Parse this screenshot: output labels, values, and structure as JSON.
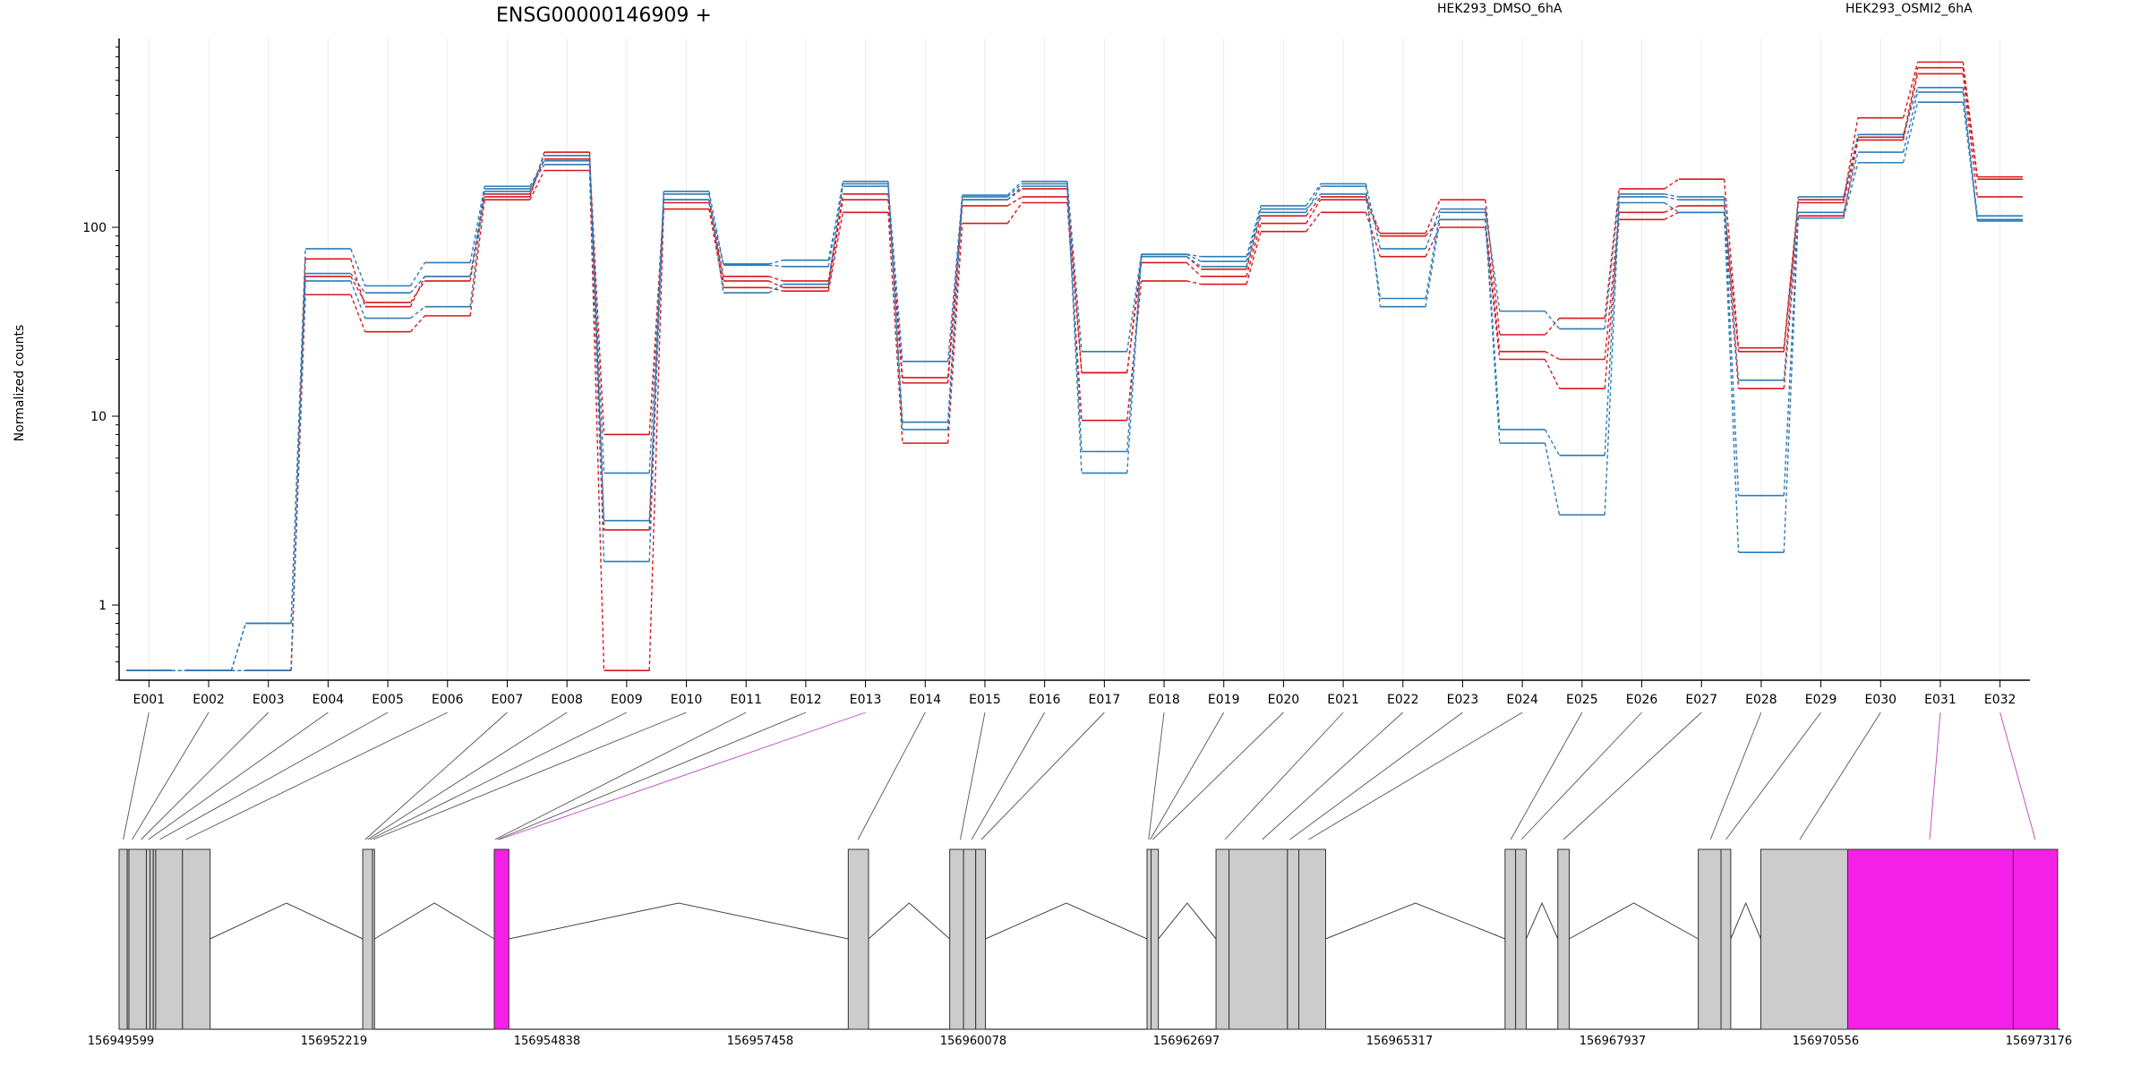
{
  "chart_data": {
    "type": "line",
    "title": "ENSG00000146909 +",
    "ylabel": "Normalized counts",
    "yscale": "log",
    "ylim": [
      0.4,
      1000
    ],
    "yticks": [
      1,
      10,
      100
    ],
    "ytick_labels": [
      "1",
      "10",
      "100"
    ],
    "grid": true,
    "legend_position": "top",
    "categories": [
      "E001",
      "E002",
      "E003",
      "E004",
      "E005",
      "E006",
      "E007",
      "E008",
      "E009",
      "E010",
      "E011",
      "E012",
      "E013",
      "E014",
      "E015",
      "E016",
      "E017",
      "E018",
      "E019",
      "E020",
      "E021",
      "E022",
      "E023",
      "E024",
      "E025",
      "E026",
      "E027",
      "E028",
      "E029",
      "E030",
      "E031",
      "E032"
    ],
    "series": [
      {
        "name": "HEK293_DMSO_6hA",
        "color": "#d7191c",
        "values": [
          0.45,
          0.45,
          0.45,
          44,
          28,
          34,
          140,
          200,
          0.45,
          125,
          48,
          46,
          120,
          7.2,
          105,
          135,
          9.5,
          52,
          50,
          95,
          120,
          70,
          100,
          20,
          14,
          110,
          120,
          14,
          115,
          290,
          650,
          145
        ]
      },
      {
        "color": "#d7191c",
        "values": [
          0.45,
          0.45,
          0.45,
          55,
          40,
          52,
          150,
          230,
          8,
          135,
          52,
          48,
          140,
          15,
          130,
          145,
          17,
          65,
          55,
          105,
          140,
          90,
          110,
          22,
          20,
          120,
          130,
          22,
          135,
          300,
          700,
          180
        ]
      },
      {
        "color": "#d7191c",
        "values": [
          0.45,
          0.45,
          0.45,
          68,
          38,
          55,
          145,
          250,
          2.5,
          140,
          55,
          52,
          150,
          16,
          140,
          160,
          17,
          70,
          60,
          115,
          145,
          93,
          140,
          27,
          33,
          160,
          180,
          23,
          140,
          380,
          750,
          185
        ]
      },
      {
        "name": "HEK293_OSMI2_6hA",
        "color": "#2c7bb6",
        "values": [
          0.45,
          0.45,
          0.45,
          52,
          33,
          38,
          160,
          215,
          1.7,
          150,
          45,
          50,
          170,
          8.5,
          140,
          165,
          5,
          70,
          62,
          120,
          165,
          38,
          110,
          7.2,
          3,
          135,
          120,
          1.9,
          112,
          220,
          460,
          110
        ]
      },
      {
        "color": "#2c7bb6",
        "values": [
          0.45,
          0.45,
          0.8,
          57,
          45,
          55,
          155,
          240,
          2.8,
          155,
          63,
          62,
          175,
          9.3,
          145,
          170,
          6.5,
          72,
          66,
          125,
          150,
          42,
          120,
          8.5,
          6.2,
          145,
          140,
          3.8,
          120,
          250,
          520,
          115
        ]
      },
      {
        "color": "#2c7bb6",
        "values": [
          0.45,
          0.45,
          0.8,
          77,
          49,
          65,
          165,
          225,
          5,
          140,
          64,
          67,
          165,
          19.5,
          148,
          175,
          22,
          72,
          70,
          130,
          170,
          77,
          125,
          36,
          29,
          150,
          145,
          15.5,
          145,
          310,
          550,
          108
        ]
      }
    ],
    "genomic_ticks": [
      "156949599",
      "156952219",
      "156954838",
      "156957458",
      "156960078",
      "156962697",
      "156965317",
      "156967937",
      "156970556",
      "156973176"
    ],
    "gene_start": 156949599,
    "gene_end": 156973176,
    "exon_fill": "#cccccc",
    "highlight_fill": "#f520e8",
    "highlight_line": "#c040c0",
    "exons": [
      {
        "start": 156949599,
        "end": 156949700
      },
      {
        "start": 156949700,
        "end": 156949720
      },
      {
        "start": 156949720,
        "end": 156949935
      },
      {
        "start": 156949935,
        "end": 156949980
      },
      {
        "start": 156949980,
        "end": 156950020
      },
      {
        "start": 156950020,
        "end": 156950050
      },
      {
        "start": 156950050,
        "end": 156950380
      },
      {
        "start": 156950380,
        "end": 156950720
      },
      {
        "start": 156952600,
        "end": 156952720
      },
      {
        "start": 156952720,
        "end": 156952745
      },
      {
        "start": 156954220,
        "end": 156954400
      },
      {
        "start": 156958580,
        "end": 156958830
      },
      {
        "start": 156959830,
        "end": 156960000
      },
      {
        "start": 156960000,
        "end": 156960150
      },
      {
        "start": 156960150,
        "end": 156960270
      },
      {
        "start": 156962260,
        "end": 156962310
      },
      {
        "start": 156962310,
        "end": 156962400
      },
      {
        "start": 156963110,
        "end": 156963270
      },
      {
        "start": 156963270,
        "end": 156963990
      },
      {
        "start": 156963990,
        "end": 156964130
      },
      {
        "start": 156964130,
        "end": 156964460
      },
      {
        "start": 156966670,
        "end": 156966800
      },
      {
        "start": 156966800,
        "end": 156966930
      },
      {
        "start": 156967320,
        "end": 156967460
      },
      {
        "start": 156969050,
        "end": 156969330
      },
      {
        "start": 156969330,
        "end": 156969450
      },
      {
        "start": 156969820,
        "end": 156970890
      },
      {
        "start": 156970890,
        "end": 156972930
      },
      {
        "start": 156972930,
        "end": 156973476
      }
    ],
    "exon_connections": [
      {
        "exon": 0,
        "pos": 156949650
      },
      {
        "exon": 1,
        "pos": 156949760
      },
      {
        "exon": 2,
        "pos": 156949870
      },
      {
        "exon": 3,
        "pos": 156949960
      },
      {
        "exon": 4,
        "pos": 156950100
      },
      {
        "exon": 5,
        "pos": 156950420
      },
      {
        "exon": 6,
        "pos": 156952630
      },
      {
        "exon": 7,
        "pos": 156952660
      },
      {
        "exon": 8,
        "pos": 156952690
      },
      {
        "exon": 9,
        "pos": 156952730
      },
      {
        "exon": 10,
        "pos": 156954230
      },
      {
        "exon": 11,
        "pos": 156954260
      },
      {
        "exon": 12,
        "pos": 156954280
      },
      {
        "exon": 13,
        "pos": 156958700
      },
      {
        "exon": 14,
        "pos": 156959960
      },
      {
        "exon": 15,
        "pos": 156960100
      },
      {
        "exon": 16,
        "pos": 156960220
      },
      {
        "exon": 17,
        "pos": 156962280
      },
      {
        "exon": 18,
        "pos": 156962300
      },
      {
        "exon": 19,
        "pos": 156962330
      },
      {
        "exon": 20,
        "pos": 156963220
      },
      {
        "exon": 21,
        "pos": 156963680
      },
      {
        "exon": 22,
        "pos": 156964020
      },
      {
        "exon": 23,
        "pos": 156964250
      },
      {
        "exon": 24,
        "pos": 156966740
      },
      {
        "exon": 25,
        "pos": 156966870
      },
      {
        "exon": 26,
        "pos": 156967390
      },
      {
        "exon": 27,
        "pos": 156969200
      },
      {
        "exon": 28,
        "pos": 156969390
      },
      {
        "exon": 29,
        "pos": 156970300
      },
      {
        "exon": 30,
        "pos": 156971900
      },
      {
        "exon": 31,
        "pos": 156973200
      }
    ],
    "highlighted_exons": [
      12,
      30,
      31
    ]
  }
}
